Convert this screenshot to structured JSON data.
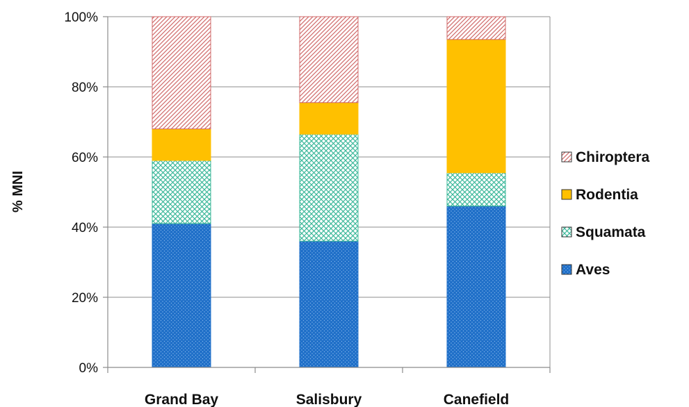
{
  "chart_data": {
    "type": "bar",
    "stacked": true,
    "categories": [
      "Grand Bay",
      "Salisbury",
      "Canefield"
    ],
    "series": [
      {
        "name": "Aves",
        "values": [
          41,
          36,
          46
        ],
        "color": "#1f6fc8",
        "pattern": "dots"
      },
      {
        "name": "Squamata",
        "values": [
          18,
          30.5,
          9.5
        ],
        "color": "#3cb89a",
        "pattern": "crosshatch"
      },
      {
        "name": "Rodentia",
        "values": [
          9,
          9,
          38
        ],
        "color": "#ffc000",
        "pattern": "solid"
      },
      {
        "name": "Chiroptera",
        "values": [
          32,
          24.5,
          6.5
        ],
        "color": "#d06a6a",
        "pattern": "diagonal"
      }
    ],
    "ylabel": "% MNI",
    "xlabel": "",
    "ylim": [
      0,
      100
    ],
    "yticks": [
      "0%",
      "20%",
      "40%",
      "60%",
      "80%",
      "100%"
    ],
    "ytick_values": [
      0,
      20,
      40,
      60,
      80,
      100
    ],
    "legend_placement": "right",
    "legend_order": [
      "Chiroptera",
      "Rodentia",
      "Squamata",
      "Aves"
    ],
    "grid": true
  }
}
